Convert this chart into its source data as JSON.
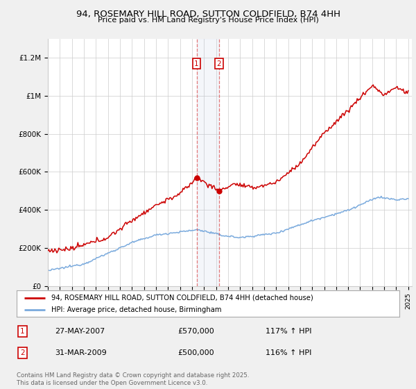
{
  "title": "94, ROSEMARY HILL ROAD, SUTTON COLDFIELD, B74 4HH",
  "subtitle": "Price paid vs. HM Land Registry's House Price Index (HPI)",
  "ylim": [
    0,
    1300000
  ],
  "yticks": [
    0,
    200000,
    400000,
    600000,
    800000,
    1000000,
    1200000
  ],
  "ytick_labels": [
    "£0",
    "£200K",
    "£400K",
    "£600K",
    "£800K",
    "£1M",
    "£1.2M"
  ],
  "x_start_year": 1995,
  "x_end_year": 2025,
  "red_line_color": "#cc0000",
  "blue_line_color": "#7aaadd",
  "marker1_date": 2007.38,
  "marker1_price": 570000,
  "marker2_date": 2009.25,
  "marker2_price": 500000,
  "legend_red": "94, ROSEMARY HILL ROAD, SUTTON COLDFIELD, B74 4HH (detached house)",
  "legend_blue": "HPI: Average price, detached house, Birmingham",
  "annotation1_label": "27-MAY-2007",
  "annotation1_price": "£570,000",
  "annotation1_hpi": "117% ↑ HPI",
  "annotation2_label": "31-MAR-2009",
  "annotation2_price": "£500,000",
  "annotation2_hpi": "116% ↑ HPI",
  "copyright_text": "Contains HM Land Registry data © Crown copyright and database right 2025.\nThis data is licensed under the Open Government Licence v3.0.",
  "background_color": "#f0f0f0",
  "plot_background": "#ffffff"
}
